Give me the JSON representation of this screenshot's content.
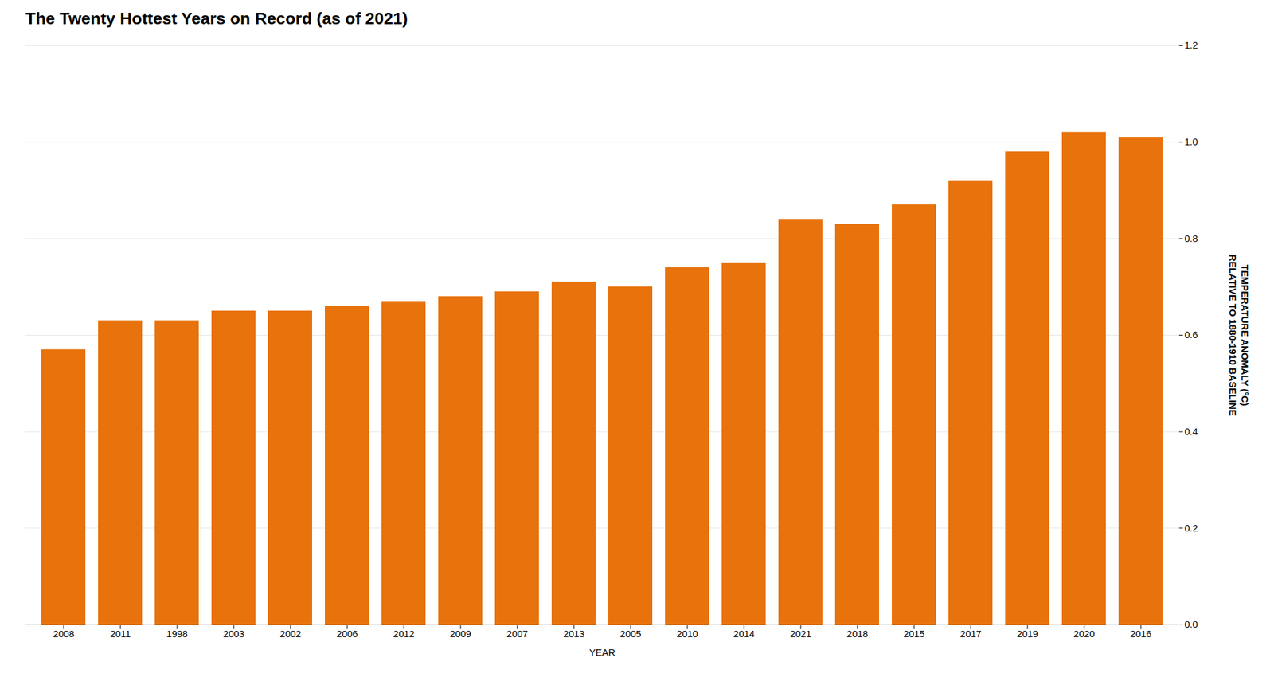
{
  "chart_data": {
    "type": "bar",
    "title": "The Twenty Hottest Years on Record (as of 2021)",
    "xlabel": "YEAR",
    "ylabel": "TEMPERATURE ANOMALY (°C)\nRELATIVE TO 1880-1910 BASELINE",
    "categories": [
      "2008",
      "2011",
      "1998",
      "2003",
      "2002",
      "2006",
      "2012",
      "2009",
      "2007",
      "2013",
      "2005",
      "2010",
      "2014",
      "2021",
      "2018",
      "2015",
      "2017",
      "2019",
      "2020",
      "2016"
    ],
    "values": [
      0.57,
      0.63,
      0.63,
      0.65,
      0.65,
      0.66,
      0.67,
      0.68,
      0.69,
      0.71,
      0.7,
      0.74,
      0.75,
      0.84,
      0.83,
      0.87,
      0.92,
      0.98,
      1.02,
      1.01
    ],
    "color": "#E8720C",
    "ylim": [
      0,
      1.2
    ],
    "yticks": [
      {
        "value": 0,
        "label": "0.0"
      },
      0.2,
      0.4,
      0.6,
      0.8,
      {
        "value": 1.0,
        "label": "1.0"
      },
      1.2
    ],
    "grid": true
  }
}
